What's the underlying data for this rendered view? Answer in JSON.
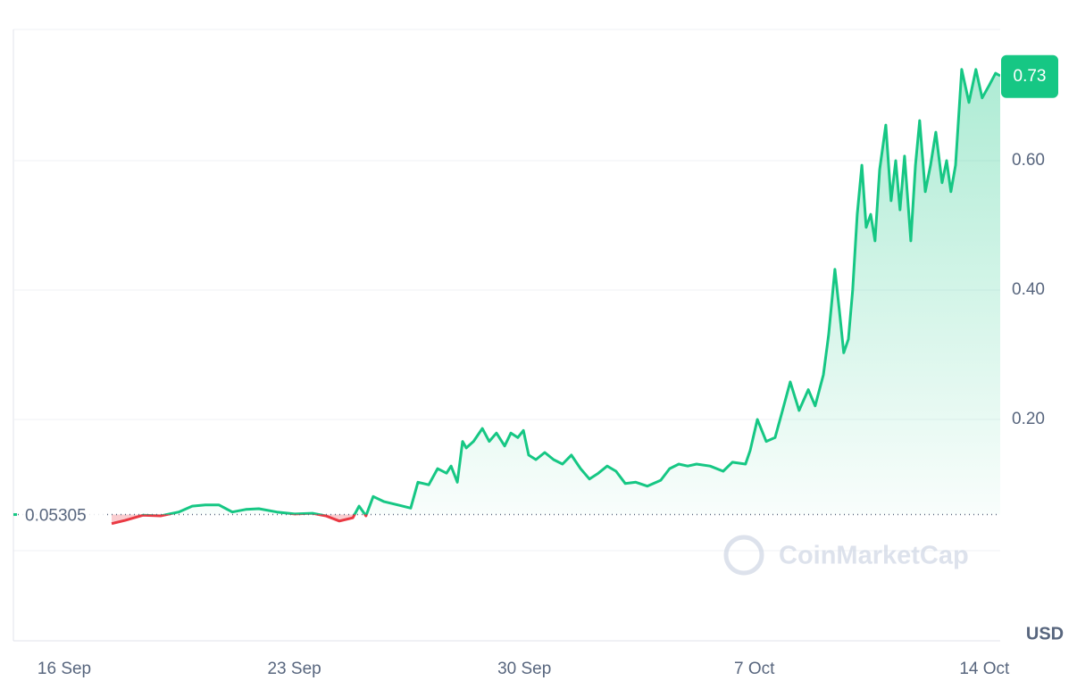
{
  "chart_data": {
    "type": "line",
    "x": [
      1.44,
      1.85,
      2.39,
      2.93,
      3.48,
      3.89,
      4.29,
      4.7,
      5.11,
      5.52,
      5.92,
      6.47,
      7.01,
      7.55,
      7.96,
      8.37,
      8.78,
      8.97,
      9.18,
      9.4,
      9.73,
      10.14,
      10.54,
      10.76,
      11.09,
      11.36,
      11.63,
      11.77,
      11.96,
      12.12,
      12.23,
      12.45,
      12.72,
      12.93,
      13.15,
      13.4,
      13.59,
      13.8,
      13.97,
      14.13,
      14.35,
      14.62,
      14.89,
      15.16,
      15.43,
      15.71,
      15.98,
      16.25,
      16.52,
      16.79,
      17.07,
      17.39,
      17.74,
      18.15,
      18.42,
      18.7,
      18.97,
      19.24,
      19.65,
      20.05,
      20.33,
      20.73,
      20.87,
      21.09,
      21.36,
      21.63,
      21.82,
      22.09,
      22.36,
      22.64,
      22.85,
      23.1,
      23.26,
      23.45,
      23.59,
      23.72,
      23.86,
      23.99,
      24.13,
      24.27,
      24.4,
      24.54,
      24.67,
      24.81,
      25.0,
      25.16,
      25.3,
      25.43,
      25.57,
      25.76,
      25.9,
      26.03,
      26.2,
      26.36,
      26.52,
      26.71,
      26.85,
      26.98,
      27.12,
      27.31,
      27.53,
      27.74,
      27.93,
      28.15,
      28.34,
      28.48
    ],
    "series": [
      {
        "color": "#16c784",
        "values": [
          0.039,
          0.044,
          0.052,
          0.051,
          0.057,
          0.066,
          0.068,
          0.068,
          0.057,
          0.061,
          0.062,
          0.057,
          0.054,
          0.055,
          0.051,
          0.043,
          0.048,
          0.066,
          0.051,
          0.081,
          0.073,
          0.068,
          0.063,
          0.103,
          0.099,
          0.124,
          0.117,
          0.128,
          0.103,
          0.166,
          0.156,
          0.166,
          0.186,
          0.166,
          0.179,
          0.159,
          0.179,
          0.172,
          0.183,
          0.145,
          0.138,
          0.149,
          0.138,
          0.131,
          0.145,
          0.124,
          0.108,
          0.117,
          0.128,
          0.12,
          0.101,
          0.103,
          0.097,
          0.106,
          0.124,
          0.131,
          0.128,
          0.131,
          0.128,
          0.12,
          0.134,
          0.131,
          0.152,
          0.2,
          0.166,
          0.172,
          0.207,
          0.258,
          0.214,
          0.246,
          0.221,
          0.269,
          0.331,
          0.432,
          0.366,
          0.303,
          0.324,
          0.4,
          0.517,
          0.593,
          0.497,
          0.517,
          0.476,
          0.586,
          0.655,
          0.538,
          0.6,
          0.524,
          0.607,
          0.476,
          0.593,
          0.662,
          0.552,
          0.593,
          0.644,
          0.566,
          0.6,
          0.552,
          0.593,
          0.741,
          0.69,
          0.741,
          0.697,
          0.717,
          0.735,
          0.731
        ]
      }
    ],
    "below_color": "#ea3943",
    "baseline": 0.05305,
    "current_price": 0.73,
    "xlim": [
      -1.55,
      28.48
    ],
    "xticks": [
      {
        "value": 0,
        "label": "16 Sep"
      },
      {
        "value": 7,
        "label": "23 Sep"
      },
      {
        "value": 14,
        "label": "30 Sep"
      },
      {
        "value": 21,
        "label": "7 Oct"
      },
      {
        "value": 28,
        "label": "14 Oct"
      }
    ],
    "ylim": [
      0,
      0.8
    ],
    "yticks": [
      {
        "value": 0.2,
        "label": "0.20"
      },
      {
        "value": 0.4,
        "label": "0.40"
      },
      {
        "value": 0.6,
        "label": "0.60"
      }
    ],
    "grid": true,
    "currency": "USD",
    "watermark": "CoinMarketCap"
  }
}
